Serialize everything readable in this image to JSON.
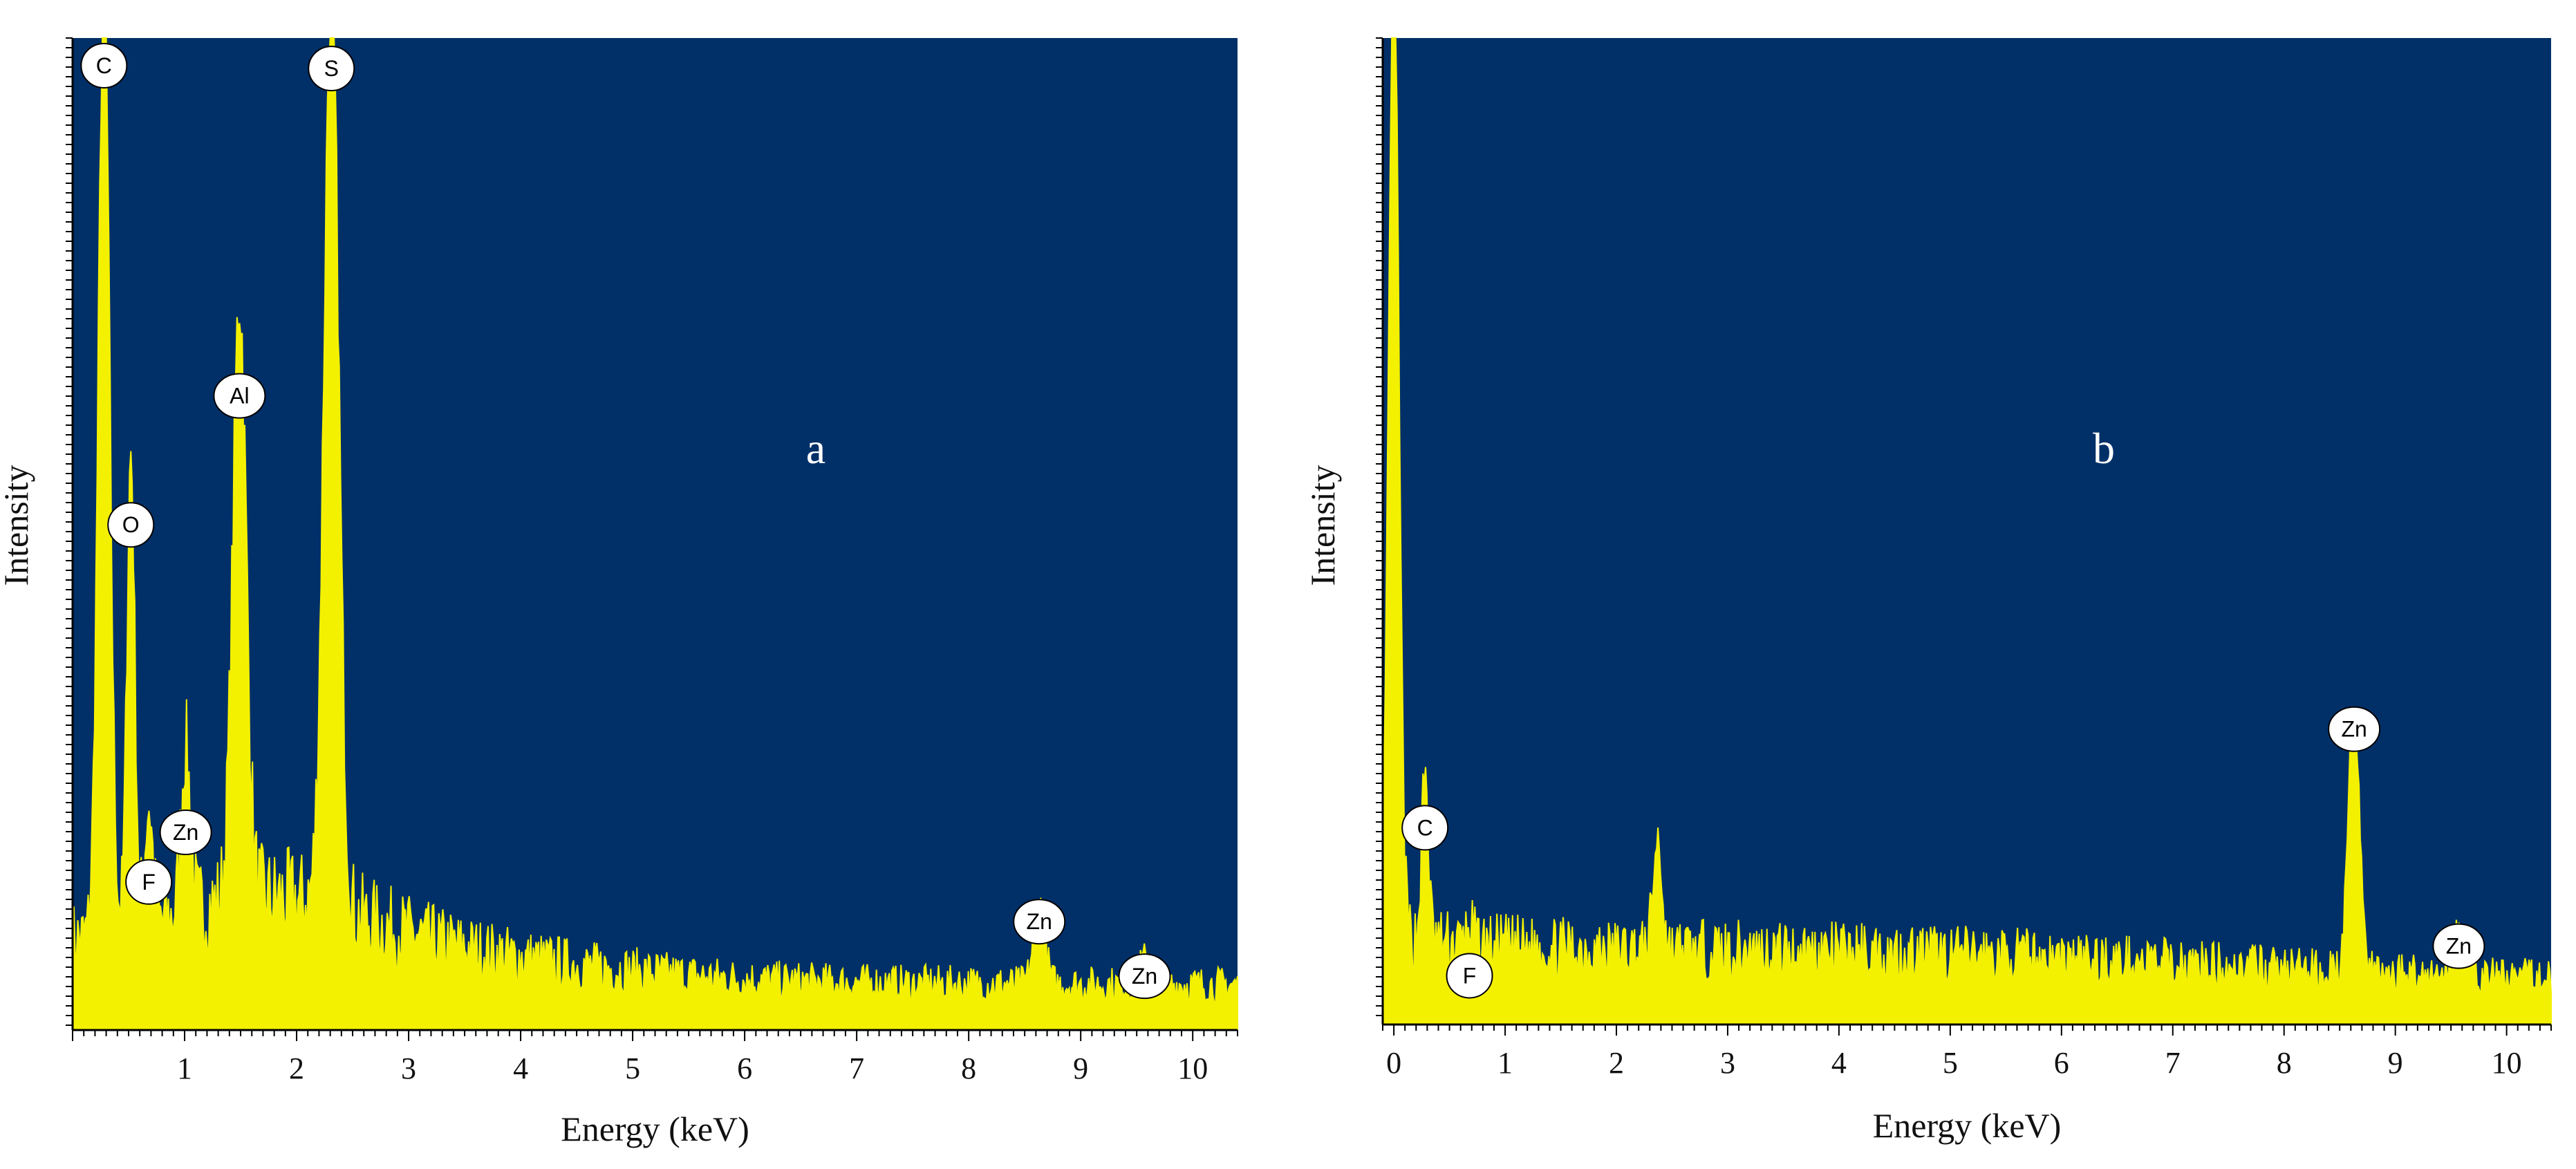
{
  "colors": {
    "plot_bg": "#013068",
    "spectrum": "#f4f100",
    "label_fill": "#ffffff",
    "axis": "#000000"
  },
  "chart_data": [
    {
      "type": "area",
      "panel_label": "a",
      "xlabel": "Energy (keV)",
      "ylabel": "Intensity",
      "xlim": [
        0,
        10.4
      ],
      "ylim": [
        0,
        100
      ],
      "x_ticks": [
        "1",
        "2",
        "3",
        "4",
        "5",
        "6",
        "7",
        "8",
        "9",
        "10"
      ],
      "background_level": 4,
      "peaks": [
        {
          "element": "C",
          "x": 0.28,
          "y": 97,
          "width": 0.05
        },
        {
          "element": "O",
          "x": 0.52,
          "y": 48,
          "width": 0.035
        },
        {
          "element": "F",
          "x": 0.68,
          "y": 12,
          "width": 0.035
        },
        {
          "element": "Zn",
          "x": 1.01,
          "y": 17,
          "width": 0.04
        },
        {
          "element": "Al",
          "x": 1.49,
          "y": 61,
          "width": 0.06
        },
        {
          "element": "S",
          "x": 2.31,
          "y": 94,
          "width": 0.065
        },
        {
          "element": "Zn",
          "x": 8.63,
          "y": 8,
          "width": 0.05
        },
        {
          "element": "Zn",
          "x": 9.57,
          "y": 2.5,
          "width": 0.05
        }
      ]
    },
    {
      "type": "area",
      "panel_label": "b",
      "xlabel": "Energy (keV)",
      "ylabel": "Intensity",
      "xlim": [
        -0.1,
        10.4
      ],
      "ylim": [
        0,
        100
      ],
      "x_ticks": [
        "0",
        "1",
        "2",
        "3",
        "4",
        "5",
        "6",
        "7",
        "8",
        "9",
        "10"
      ],
      "background_level": 4,
      "peaks": [
        {
          "element": "",
          "x": 0.0,
          "y": 100,
          "width": 0.045
        },
        {
          "element": "C",
          "x": 0.28,
          "y": 17,
          "width": 0.03
        },
        {
          "element": "F",
          "x": 0.68,
          "y": 2,
          "width": 0.03
        },
        {
          "element": "",
          "x": 2.37,
          "y": 11,
          "width": 0.04
        },
        {
          "element": "Zn",
          "x": 8.63,
          "y": 27,
          "width": 0.05
        },
        {
          "element": "Zn",
          "x": 9.57,
          "y": 5,
          "width": 0.045
        }
      ]
    }
  ]
}
